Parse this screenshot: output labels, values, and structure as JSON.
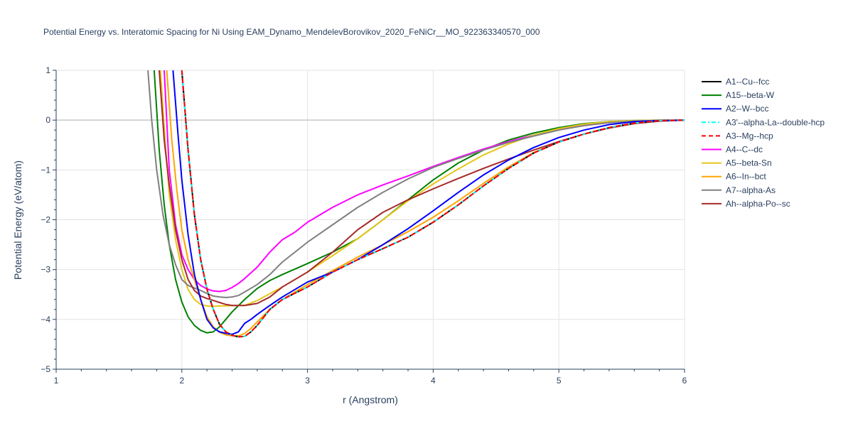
{
  "title": "Potential Energy vs. Interatomic Spacing for Ni Using EAM_Dynamo_MendelevBorovikov_2020_FeNiCr__MO_922363340570_000",
  "chart_data": {
    "type": "line",
    "title": "Potential Energy vs. Interatomic Spacing for Ni Using EAM_Dynamo_MendelevBorovikov_2020_FeNiCr__MO_922363340570_000",
    "xlabel": "r (Angstrom)",
    "ylabel": "Potential Energy (eV/atom)",
    "xlim": [
      1,
      6
    ],
    "ylim": [
      -5,
      1
    ],
    "xticks": [
      1,
      2,
      3,
      4,
      5,
      6
    ],
    "yticks": [
      1,
      0,
      -1,
      -2,
      -3,
      -4,
      -5
    ],
    "ytick_labels": [
      "1",
      "0",
      "−1",
      "−2",
      "−3",
      "−4",
      "−5"
    ],
    "grid": true,
    "legend_position": "right",
    "series": [
      {
        "name": "A1--Cu--fcc",
        "color": "#000000",
        "dash": "solid",
        "x": [
          2.0,
          2.05,
          2.1,
          2.15,
          2.2,
          2.25,
          2.3,
          2.35,
          2.4,
          2.45,
          2.5,
          2.55,
          2.6,
          2.7,
          2.8,
          3.0,
          3.2,
          3.4,
          3.6,
          3.8,
          4.0,
          4.2,
          4.4,
          4.6,
          4.8,
          5.0,
          5.2,
          5.4,
          5.6,
          5.8,
          6.0
        ],
        "y": [
          1.0,
          -0.6,
          -1.9,
          -2.8,
          -3.4,
          -3.8,
          -4.1,
          -4.25,
          -4.32,
          -4.35,
          -4.34,
          -4.25,
          -4.12,
          -3.8,
          -3.6,
          -3.35,
          -3.05,
          -2.8,
          -2.58,
          -2.35,
          -2.05,
          -1.7,
          -1.32,
          -0.97,
          -0.66,
          -0.44,
          -0.28,
          -0.15,
          -0.06,
          -0.01,
          0.0
        ]
      },
      {
        "name": "A15--beta-W",
        "color": "#008000",
        "dash": "solid",
        "x": [
          1.78,
          1.82,
          1.86,
          1.9,
          1.95,
          2.0,
          2.05,
          2.1,
          2.15,
          2.2,
          2.25,
          2.3,
          2.35,
          2.4,
          2.5,
          2.6,
          2.7,
          2.8,
          3.0,
          3.2,
          3.4,
          3.6,
          3.8,
          4.0,
          4.2,
          4.4,
          4.6,
          4.8,
          5.0,
          5.2,
          5.4,
          5.6,
          5.8,
          6.0
        ],
        "y": [
          1.0,
          -0.6,
          -1.7,
          -2.5,
          -3.2,
          -3.65,
          -3.95,
          -4.12,
          -4.22,
          -4.27,
          -4.25,
          -4.15,
          -4.0,
          -3.85,
          -3.6,
          -3.38,
          -3.22,
          -3.1,
          -2.88,
          -2.65,
          -2.38,
          -2.0,
          -1.6,
          -1.2,
          -0.86,
          -0.6,
          -0.4,
          -0.26,
          -0.15,
          -0.07,
          -0.03,
          -0.01,
          0.0,
          0.0
        ]
      },
      {
        "name": "A2--W--bcc",
        "color": "#0000ff",
        "dash": "solid",
        "x": [
          1.93,
          1.97,
          2.0,
          2.05,
          2.1,
          2.15,
          2.2,
          2.25,
          2.3,
          2.35,
          2.4,
          2.45,
          2.5,
          2.55,
          2.6,
          2.7,
          2.8,
          3.0,
          3.2,
          3.4,
          3.6,
          3.8,
          4.0,
          4.2,
          4.4,
          4.6,
          4.8,
          5.0,
          5.2,
          5.4,
          5.6,
          5.8,
          6.0
        ],
        "y": [
          1.0,
          -0.3,
          -1.2,
          -2.3,
          -3.1,
          -3.6,
          -4.0,
          -4.17,
          -4.25,
          -4.28,
          -4.3,
          -4.25,
          -4.08,
          -4.0,
          -3.9,
          -3.72,
          -3.55,
          -3.25,
          -3.05,
          -2.8,
          -2.5,
          -2.18,
          -1.82,
          -1.45,
          -1.1,
          -0.8,
          -0.55,
          -0.35,
          -0.2,
          -0.09,
          -0.03,
          -0.01,
          0.0
        ]
      },
      {
        "name": "A3'--alpha-La--double-hcp",
        "color": "#00ffff",
        "dash": "dashdot",
        "x": [
          2.0,
          2.05,
          2.1,
          2.15,
          2.2,
          2.25,
          2.3,
          2.35,
          2.4,
          2.45,
          2.5,
          2.55,
          2.6,
          2.7,
          2.8,
          3.0,
          3.2,
          3.4,
          3.6,
          3.8,
          4.0,
          4.2,
          4.4,
          4.6,
          4.8,
          5.0,
          5.2,
          5.4,
          5.6,
          5.8,
          6.0
        ],
        "y": [
          1.0,
          -0.6,
          -1.9,
          -2.8,
          -3.4,
          -3.8,
          -4.1,
          -4.25,
          -4.32,
          -4.35,
          -4.34,
          -4.25,
          -4.12,
          -3.8,
          -3.6,
          -3.35,
          -3.05,
          -2.8,
          -2.58,
          -2.35,
          -2.05,
          -1.7,
          -1.32,
          -0.97,
          -0.66,
          -0.44,
          -0.28,
          -0.15,
          -0.06,
          -0.01,
          0.0
        ]
      },
      {
        "name": "A3--Mg--hcp",
        "color": "#ff0000",
        "dash": "dash",
        "x": [
          2.0,
          2.05,
          2.1,
          2.15,
          2.2,
          2.25,
          2.3,
          2.35,
          2.4,
          2.45,
          2.5,
          2.55,
          2.6,
          2.7,
          2.8,
          3.0,
          3.2,
          3.4,
          3.6,
          3.8,
          4.0,
          4.2,
          4.4,
          4.6,
          4.8,
          5.0,
          5.2,
          5.4,
          5.6,
          5.8,
          6.0
        ],
        "y": [
          1.0,
          -0.6,
          -1.9,
          -2.8,
          -3.4,
          -3.8,
          -4.1,
          -4.25,
          -4.32,
          -4.35,
          -4.34,
          -4.25,
          -4.12,
          -3.8,
          -3.6,
          -3.35,
          -3.05,
          -2.8,
          -2.58,
          -2.35,
          -2.05,
          -1.7,
          -1.32,
          -0.97,
          -0.66,
          -0.44,
          -0.28,
          -0.15,
          -0.06,
          -0.01,
          0.0
        ]
      },
      {
        "name": "A4--C--dc",
        "color": "#ff00ff",
        "dash": "solid",
        "x": [
          1.86,
          1.9,
          1.95,
          2.0,
          2.05,
          2.1,
          2.15,
          2.2,
          2.25,
          2.3,
          2.35,
          2.4,
          2.45,
          2.5,
          2.6,
          2.7,
          2.8,
          2.9,
          3.0,
          3.2,
          3.4,
          3.6,
          3.8,
          4.0,
          4.2,
          4.4,
          4.6,
          4.8,
          5.0,
          5.2,
          5.4,
          5.6,
          5.8,
          6.0
        ],
        "y": [
          1.0,
          -1.0,
          -2.1,
          -2.7,
          -3.0,
          -3.2,
          -3.32,
          -3.39,
          -3.43,
          -3.44,
          -3.42,
          -3.36,
          -3.28,
          -3.18,
          -2.95,
          -2.65,
          -2.4,
          -2.25,
          -2.05,
          -1.75,
          -1.5,
          -1.3,
          -1.12,
          -0.93,
          -0.75,
          -0.58,
          -0.43,
          -0.3,
          -0.19,
          -0.11,
          -0.05,
          -0.02,
          -0.005,
          0.0
        ]
      },
      {
        "name": "A5--beta-Sn",
        "color": "#e6c619",
        "dash": "solid",
        "x": [
          1.83,
          1.87,
          1.9,
          1.95,
          2.0,
          2.05,
          2.1,
          2.15,
          2.2,
          2.25,
          2.3,
          2.35,
          2.4,
          2.5,
          2.6,
          2.8,
          3.0,
          3.2,
          3.4,
          3.6,
          3.8,
          4.0,
          4.2,
          4.4,
          4.6,
          4.8,
          5.0,
          5.2,
          5.4,
          5.6,
          5.8,
          6.0
        ],
        "y": [
          1.0,
          -0.5,
          -1.5,
          -2.4,
          -3.0,
          -3.4,
          -3.6,
          -3.7,
          -3.73,
          -3.74,
          -3.73,
          -3.73,
          -3.72,
          -3.72,
          -3.62,
          -3.35,
          -3.05,
          -2.72,
          -2.38,
          -2.0,
          -1.62,
          -1.28,
          -0.98,
          -0.7,
          -0.48,
          -0.3,
          -0.17,
          -0.08,
          -0.03,
          -0.01,
          0.0,
          0.0
        ]
      },
      {
        "name": "A6--In--bct",
        "color": "#ffa500",
        "dash": "solid",
        "x": [
          1.88,
          1.92,
          1.96,
          2.0,
          2.05,
          2.1,
          2.15,
          2.2,
          2.25,
          2.3,
          2.35,
          2.4,
          2.45,
          2.5,
          2.55,
          2.6,
          2.7,
          2.8,
          3.0,
          3.2,
          3.4,
          3.6,
          3.8,
          4.0,
          4.2,
          4.4,
          4.6,
          4.8,
          5.0,
          5.2,
          5.4,
          5.6,
          5.8,
          6.0
        ],
        "y": [
          1.0,
          -0.4,
          -1.4,
          -2.2,
          -2.8,
          -3.2,
          -3.6,
          -3.95,
          -4.15,
          -4.26,
          -4.31,
          -4.33,
          -4.33,
          -4.28,
          -4.18,
          -4.05,
          -3.8,
          -3.6,
          -3.3,
          -3.02,
          -2.75,
          -2.5,
          -2.24,
          -1.95,
          -1.62,
          -1.27,
          -0.94,
          -0.65,
          -0.44,
          -0.28,
          -0.15,
          -0.06,
          -0.01,
          0.0
        ]
      },
      {
        "name": "A7--alpha-As",
        "color": "#808080",
        "dash": "solid",
        "x": [
          1.73,
          1.76,
          1.8,
          1.85,
          1.9,
          1.95,
          2.0,
          2.05,
          2.1,
          2.15,
          2.2,
          2.25,
          2.3,
          2.35,
          2.4,
          2.45,
          2.5,
          2.6,
          2.7,
          2.8,
          3.0,
          3.2,
          3.4,
          3.6,
          3.8,
          4.0,
          4.2,
          4.4,
          4.6,
          4.8,
          5.0,
          5.2,
          5.4,
          5.6,
          5.8,
          6.0
        ],
        "y": [
          1.0,
          0.0,
          -1.0,
          -1.9,
          -2.5,
          -2.9,
          -3.2,
          -3.32,
          -3.37,
          -3.42,
          -3.48,
          -3.53,
          -3.55,
          -3.56,
          -3.55,
          -3.52,
          -3.45,
          -3.3,
          -3.1,
          -2.85,
          -2.45,
          -2.1,
          -1.75,
          -1.45,
          -1.18,
          -0.95,
          -0.77,
          -0.6,
          -0.45,
          -0.32,
          -0.2,
          -0.11,
          -0.05,
          -0.02,
          -0.005,
          0.0
        ]
      },
      {
        "name": "Ah--alpha-Po--sc",
        "color": "#a52a2a",
        "dash": "solid",
        "x": [
          1.82,
          1.86,
          1.9,
          1.95,
          2.0,
          2.05,
          2.1,
          2.15,
          2.2,
          2.25,
          2.3,
          2.35,
          2.4,
          2.5,
          2.6,
          2.7,
          2.8,
          3.0,
          3.2,
          3.4,
          3.6,
          3.8,
          4.0,
          4.2,
          4.4,
          4.6,
          4.8,
          5.0,
          5.2,
          5.4,
          5.6,
          5.8,
          6.0
        ],
        "y": [
          1.0,
          -0.4,
          -1.3,
          -2.2,
          -2.8,
          -3.2,
          -3.42,
          -3.53,
          -3.58,
          -3.62,
          -3.66,
          -3.7,
          -3.72,
          -3.72,
          -3.68,
          -3.55,
          -3.35,
          -3.05,
          -2.65,
          -2.2,
          -1.85,
          -1.6,
          -1.38,
          -1.17,
          -0.97,
          -0.78,
          -0.6,
          -0.43,
          -0.28,
          -0.16,
          -0.07,
          -0.02,
          0.0
        ]
      }
    ]
  }
}
